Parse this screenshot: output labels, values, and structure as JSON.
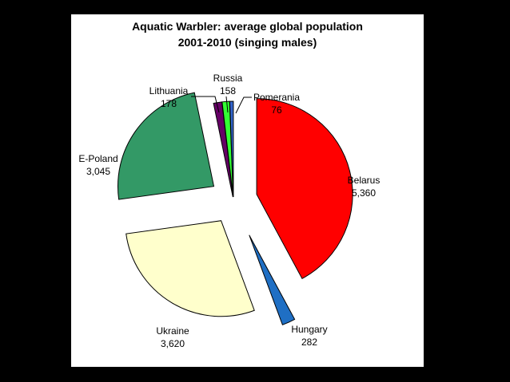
{
  "chart_data": {
    "type": "pie",
    "title": "Aquatic Warbler: average global population",
    "subtitle": "2001-2010 (singing males)",
    "legend": "none",
    "slices": [
      {
        "name": "Belarus",
        "value": 5360,
        "value_label": "5,360",
        "color": "#ff0000"
      },
      {
        "name": "Hungary",
        "value": 282,
        "value_label": "282",
        "color": "#1f6fc4"
      },
      {
        "name": "Ukraine",
        "value": 3620,
        "value_label": "3,620",
        "color": "#ffffcc"
      },
      {
        "name": "E-Poland",
        "value": 3045,
        "value_label": "3,045",
        "color": "#339966"
      },
      {
        "name": "Lithuania",
        "value": 178,
        "value_label": "178",
        "color": "#660066"
      },
      {
        "name": "Russia",
        "value": 158,
        "value_label": "158",
        "color": "#33ff33"
      },
      {
        "name": "Pomerania",
        "value": 76,
        "value_label": "76",
        "color": "#3366cc"
      }
    ]
  }
}
